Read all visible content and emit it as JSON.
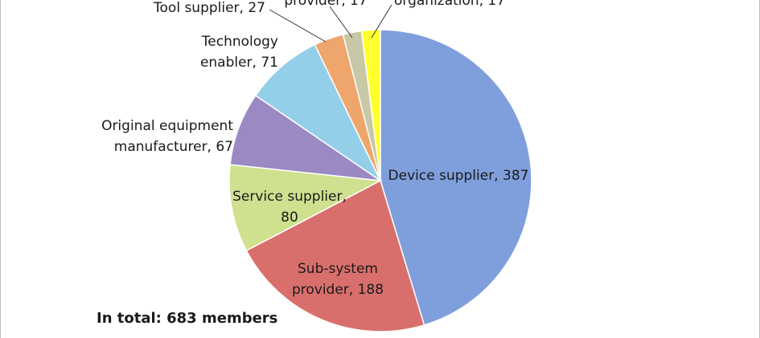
{
  "chart_data": {
    "type": "pie",
    "labels": [
      [
        "Device supplier, 387"
      ],
      [
        "Sub-system",
        "provider, 188"
      ],
      [
        "Service supplier,",
        "80"
      ],
      [
        "Original equipment",
        "manufacturer, 67"
      ],
      [
        "Technology",
        "enabler, 71"
      ],
      [
        "Tool supplier, 27"
      ],
      [
        "provider, 17"
      ],
      [
        "organization, 17"
      ]
    ],
    "values": [
      387,
      188,
      80,
      67,
      71,
      27,
      17,
      17
    ],
    "colors": [
      "#7f9fdc",
      "#d86f6c",
      "#cfe08f",
      "#9a89c2",
      "#93cfe8",
      "#efa66c",
      "#c9c8a6",
      "#ffff2e"
    ],
    "note": "In total: 683 members"
  }
}
